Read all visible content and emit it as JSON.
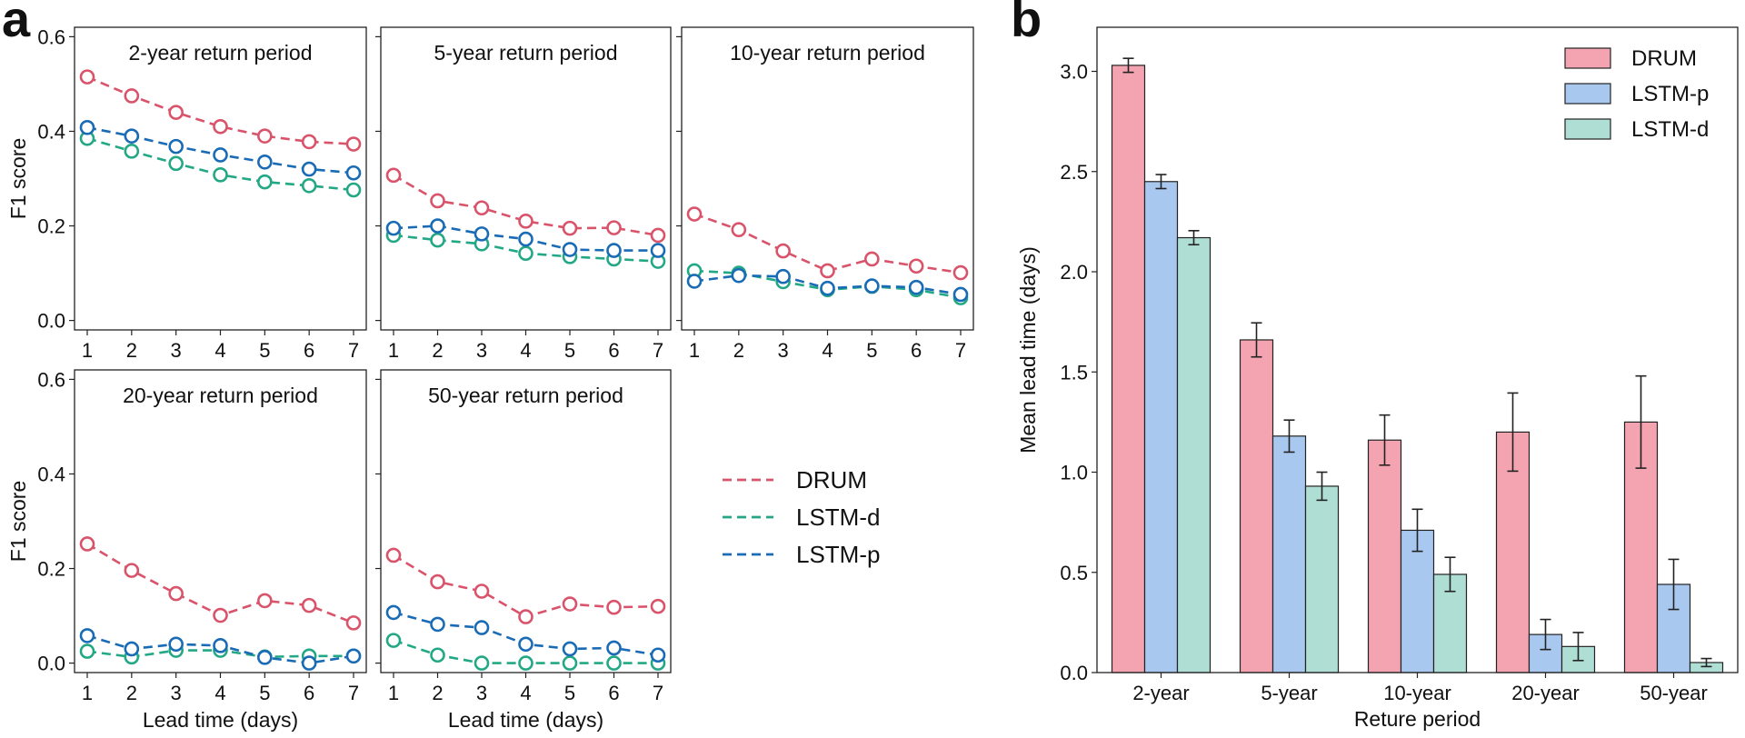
{
  "panel_labels": {
    "a": "a",
    "b": "b"
  },
  "colors": {
    "DRUM": "#d9546b",
    "LSTM-d": "#22a884",
    "LSTM-p": "#1a6bb5",
    "bar_DRUM": "#f4a4b1",
    "bar_LSTM-p": "#a9c8ef",
    "bar_LSTM-d": "#afded4"
  },
  "chart_data": [
    {
      "type": "line",
      "id": "a1",
      "title": "2-year return period",
      "x": [
        1,
        2,
        3,
        4,
        5,
        6,
        7
      ],
      "xlabel": "",
      "ylabel": "F1 score",
      "ylim": [
        -0.02,
        0.62
      ],
      "yticks": [
        "0.0",
        "0.2",
        "0.4",
        "0.6"
      ],
      "series": [
        {
          "name": "DRUM",
          "values": [
            0.515,
            0.475,
            0.44,
            0.41,
            0.39,
            0.378,
            0.373
          ]
        },
        {
          "name": "LSTM-p",
          "values": [
            0.408,
            0.39,
            0.368,
            0.35,
            0.335,
            0.32,
            0.312
          ]
        },
        {
          "name": "LSTM-d",
          "values": [
            0.385,
            0.358,
            0.332,
            0.308,
            0.293,
            0.285,
            0.276
          ]
        }
      ]
    },
    {
      "type": "line",
      "id": "a2",
      "title": "5-year return period",
      "x": [
        1,
        2,
        3,
        4,
        5,
        6,
        7
      ],
      "xlabel": "",
      "ylabel": "",
      "ylim": [
        -0.02,
        0.62
      ],
      "series": [
        {
          "name": "DRUM",
          "values": [
            0.307,
            0.253,
            0.238,
            0.21,
            0.195,
            0.196,
            0.18
          ]
        },
        {
          "name": "LSTM-p",
          "values": [
            0.195,
            0.2,
            0.183,
            0.172,
            0.15,
            0.148,
            0.148
          ]
        },
        {
          "name": "LSTM-d",
          "values": [
            0.18,
            0.17,
            0.162,
            0.142,
            0.135,
            0.13,
            0.125
          ]
        }
      ]
    },
    {
      "type": "line",
      "id": "a3",
      "title": "10-year return period",
      "x": [
        1,
        2,
        3,
        4,
        5,
        6,
        7
      ],
      "xlabel": "",
      "ylabel": "",
      "ylim": [
        -0.02,
        0.62
      ],
      "series": [
        {
          "name": "DRUM",
          "values": [
            0.225,
            0.192,
            0.147,
            0.105,
            0.13,
            0.115,
            0.101
          ]
        },
        {
          "name": "LSTM-p",
          "values": [
            0.083,
            0.095,
            0.093,
            0.068,
            0.073,
            0.07,
            0.055
          ]
        },
        {
          "name": "LSTM-d",
          "values": [
            0.105,
            0.1,
            0.082,
            0.065,
            0.072,
            0.065,
            0.048
          ]
        }
      ]
    },
    {
      "type": "line",
      "id": "a4",
      "title": "20-year return period",
      "x": [
        1,
        2,
        3,
        4,
        5,
        6,
        7
      ],
      "xlabel": "Lead time (days)",
      "ylabel": "F1 score",
      "ylim": [
        -0.02,
        0.62
      ],
      "yticks": [
        "0.0",
        "0.2",
        "0.4",
        "0.6"
      ],
      "series": [
        {
          "name": "DRUM",
          "values": [
            0.252,
            0.196,
            0.147,
            0.101,
            0.132,
            0.122,
            0.085
          ]
        },
        {
          "name": "LSTM-p",
          "values": [
            0.058,
            0.03,
            0.04,
            0.037,
            0.012,
            0.0,
            0.015
          ]
        },
        {
          "name": "LSTM-d",
          "values": [
            0.025,
            0.013,
            0.027,
            0.027,
            0.013,
            0.015,
            0.015
          ]
        }
      ]
    },
    {
      "type": "line",
      "id": "a5",
      "title": "50-year return period",
      "x": [
        1,
        2,
        3,
        4,
        5,
        6,
        7
      ],
      "xlabel": "Lead time (days)",
      "ylabel": "",
      "ylim": [
        -0.02,
        0.62
      ],
      "series": [
        {
          "name": "DRUM",
          "values": [
            0.228,
            0.172,
            0.152,
            0.098,
            0.125,
            0.118,
            0.12
          ]
        },
        {
          "name": "LSTM-p",
          "values": [
            0.107,
            0.082,
            0.075,
            0.04,
            0.03,
            0.032,
            0.017
          ]
        },
        {
          "name": "LSTM-d",
          "values": [
            0.048,
            0.017,
            0.0,
            0.0,
            0.0,
            0.0,
            0.0
          ]
        }
      ]
    },
    {
      "type": "bar",
      "id": "b",
      "categories": [
        "2-year",
        "5-year",
        "10-year",
        "20-year",
        "50-year"
      ],
      "xlabel": "Reture period",
      "ylabel": "Mean lead time (days)",
      "ylim": [
        0,
        3.22
      ],
      "yticks": [
        "0.0",
        "0.5",
        "1.0",
        "1.5",
        "2.0",
        "2.5",
        "3.0"
      ],
      "legend_position": "top-right",
      "series": [
        {
          "name": "DRUM",
          "values": [
            3.03,
            1.66,
            1.16,
            1.2,
            1.25
          ],
          "errors": [
            0.035,
            0.085,
            0.125,
            0.195,
            0.23
          ]
        },
        {
          "name": "LSTM-p",
          "values": [
            2.45,
            1.18,
            0.71,
            0.19,
            0.44
          ],
          "errors": [
            0.035,
            0.08,
            0.105,
            0.075,
            0.125
          ]
        },
        {
          "name": "LSTM-d",
          "values": [
            2.17,
            0.93,
            0.49,
            0.13,
            0.05
          ],
          "errors": [
            0.035,
            0.07,
            0.085,
            0.07,
            0.02
          ]
        }
      ]
    }
  ],
  "line_legend": {
    "entries": [
      {
        "name": "DRUM",
        "label": "DRUM"
      },
      {
        "name": "LSTM-d",
        "label": "LSTM-d"
      },
      {
        "name": "LSTM-p",
        "label": "LSTM-p"
      }
    ]
  }
}
